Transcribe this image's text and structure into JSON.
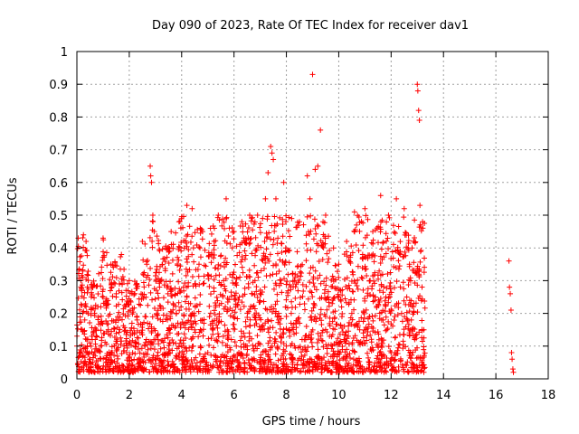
{
  "chart_data": {
    "type": "scatter",
    "title": "Day 090 of 2023, Rate Of TEC Index for receiver dav1",
    "xlabel": "GPS time / hours",
    "ylabel": "ROTI / TECUs",
    "xlim": [
      0,
      18
    ],
    "ylim": [
      0,
      1
    ],
    "x_ticks": [
      "0",
      "2",
      "4",
      "6",
      "8",
      "10",
      "12",
      "14",
      "16",
      "18"
    ],
    "y_ticks": [
      "0",
      "0.1",
      "0.2",
      "0.3",
      "0.4",
      "0.5",
      "0.6",
      "0.7",
      "0.8",
      "0.9",
      "1"
    ],
    "grid": true,
    "marker": "plus",
    "color": "#ff0000",
    "envelope_note_x_hours": [
      [
        0.0,
        0.43
      ],
      [
        0.3,
        0.45
      ],
      [
        0.5,
        0.3
      ],
      [
        0.8,
        0.3
      ],
      [
        1.0,
        0.43
      ],
      [
        1.3,
        0.35
      ],
      [
        1.7,
        0.38
      ],
      [
        2.0,
        0.3
      ],
      [
        2.3,
        0.3
      ],
      [
        2.6,
        0.42
      ],
      [
        2.8,
        0.65
      ],
      [
        3.0,
        0.45
      ],
      [
        3.3,
        0.4
      ],
      [
        3.6,
        0.45
      ],
      [
        3.9,
        0.48
      ],
      [
        4.2,
        0.53
      ],
      [
        4.5,
        0.5
      ],
      [
        4.8,
        0.45
      ],
      [
        5.1,
        0.46
      ],
      [
        5.4,
        0.5
      ],
      [
        5.7,
        0.55
      ],
      [
        6.0,
        0.45
      ],
      [
        6.3,
        0.48
      ],
      [
        6.6,
        0.5
      ],
      [
        6.9,
        0.5
      ],
      [
        7.2,
        0.55
      ],
      [
        7.4,
        0.71
      ],
      [
        7.6,
        0.55
      ],
      [
        7.9,
        0.6
      ],
      [
        8.2,
        0.49
      ],
      [
        8.5,
        0.48
      ],
      [
        8.8,
        0.62
      ],
      [
        9.0,
        0.93
      ],
      [
        9.2,
        0.65
      ],
      [
        9.3,
        0.76
      ],
      [
        9.5,
        0.5
      ],
      [
        9.8,
        0.4
      ],
      [
        10.0,
        0.35
      ],
      [
        10.3,
        0.42
      ],
      [
        10.6,
        0.51
      ],
      [
        11.0,
        0.52
      ],
      [
        11.3,
        0.45
      ],
      [
        11.6,
        0.56
      ],
      [
        11.9,
        0.5
      ],
      [
        12.2,
        0.55
      ],
      [
        12.5,
        0.52
      ],
      [
        12.8,
        0.4
      ],
      [
        13.0,
        0.9
      ],
      [
        13.2,
        0.48
      ],
      [
        16.5,
        0.36
      ]
    ],
    "series": [
      {
        "values": [
          [
            0.0,
            0.1
          ],
          [
            0.05,
            0.43
          ],
          [
            0.1,
            0.08
          ],
          [
            0.15,
            0.3
          ],
          [
            0.2,
            0.15
          ],
          [
            0.25,
            0.44
          ],
          [
            0.3,
            0.18
          ],
          [
            0.35,
            0.42
          ],
          [
            0.4,
            0.1
          ],
          [
            0.5,
            0.06
          ],
          [
            0.6,
            0.05
          ],
          [
            0.7,
            0.12
          ],
          [
            0.8,
            0.22
          ],
          [
            0.9,
            0.1
          ],
          [
            1.0,
            0.43
          ],
          [
            1.1,
            0.05
          ],
          [
            1.2,
            0.15
          ],
          [
            1.3,
            0.35
          ],
          [
            1.4,
            0.03
          ],
          [
            1.5,
            0.25
          ],
          [
            1.7,
            0.38
          ],
          [
            1.8,
            0.1
          ],
          [
            1.9,
            0.08
          ],
          [
            2.0,
            0.3
          ],
          [
            2.1,
            0.04
          ],
          [
            2.3,
            0.18
          ],
          [
            2.5,
            0.42
          ],
          [
            2.6,
            0.1
          ],
          [
            2.8,
            0.65
          ],
          [
            2.82,
            0.62
          ],
          [
            2.85,
            0.6
          ],
          [
            2.9,
            0.5
          ],
          [
            2.95,
            0.45
          ],
          [
            3.0,
            0.12
          ],
          [
            3.2,
            0.3
          ],
          [
            3.4,
            0.4
          ],
          [
            3.5,
            0.08
          ],
          [
            3.6,
            0.45
          ],
          [
            3.8,
            0.2
          ],
          [
            3.9,
            0.48
          ],
          [
            4.0,
            0.1
          ],
          [
            4.2,
            0.53
          ],
          [
            4.4,
            0.52
          ],
          [
            4.5,
            0.15
          ],
          [
            4.7,
            0.4
          ],
          [
            4.8,
            0.45
          ],
          [
            5.0,
            0.08
          ],
          [
            5.1,
            0.46
          ],
          [
            5.3,
            0.22
          ],
          [
            5.4,
            0.5
          ],
          [
            5.6,
            0.3
          ],
          [
            5.7,
            0.55
          ],
          [
            5.9,
            0.12
          ],
          [
            6.0,
            0.45
          ],
          [
            6.2,
            0.25
          ],
          [
            6.3,
            0.48
          ],
          [
            6.5,
            0.1
          ],
          [
            6.6,
            0.5
          ],
          [
            6.8,
            0.3
          ],
          [
            6.9,
            0.5
          ],
          [
            7.0,
            0.15
          ],
          [
            7.2,
            0.55
          ],
          [
            7.3,
            0.63
          ],
          [
            7.4,
            0.71
          ],
          [
            7.45,
            0.69
          ],
          [
            7.5,
            0.67
          ],
          [
            7.6,
            0.55
          ],
          [
            7.7,
            0.2
          ],
          [
            7.9,
            0.6
          ],
          [
            8.0,
            0.1
          ],
          [
            8.2,
            0.49
          ],
          [
            8.3,
            0.3
          ],
          [
            8.5,
            0.48
          ],
          [
            8.6,
            0.12
          ],
          [
            8.8,
            0.62
          ],
          [
            8.9,
            0.55
          ],
          [
            9.0,
            0.93
          ],
          [
            9.1,
            0.64
          ],
          [
            9.2,
            0.65
          ],
          [
            9.3,
            0.76
          ],
          [
            9.4,
            0.48
          ],
          [
            9.5,
            0.5
          ],
          [
            9.6,
            0.25
          ],
          [
            9.8,
            0.4
          ],
          [
            9.9,
            0.05
          ],
          [
            10.0,
            0.35
          ],
          [
            10.1,
            0.03
          ],
          [
            10.2,
            0.12
          ],
          [
            10.3,
            0.42
          ],
          [
            10.5,
            0.2
          ],
          [
            10.6,
            0.51
          ],
          [
            10.8,
            0.15
          ],
          [
            11.0,
            0.52
          ],
          [
            11.2,
            0.3
          ],
          [
            11.3,
            0.45
          ],
          [
            11.5,
            0.1
          ],
          [
            11.6,
            0.56
          ],
          [
            11.8,
            0.25
          ],
          [
            11.9,
            0.5
          ],
          [
            12.0,
            0.08
          ],
          [
            12.2,
            0.55
          ],
          [
            12.4,
            0.2
          ],
          [
            12.5,
            0.52
          ],
          [
            12.7,
            0.35
          ],
          [
            12.8,
            0.4
          ],
          [
            12.9,
            0.12
          ],
          [
            13.0,
            0.9
          ],
          [
            13.02,
            0.88
          ],
          [
            13.05,
            0.82
          ],
          [
            13.08,
            0.79
          ],
          [
            13.1,
            0.53
          ],
          [
            13.2,
            0.48
          ],
          [
            13.25,
            0.15
          ],
          [
            16.5,
            0.36
          ],
          [
            16.52,
            0.28
          ],
          [
            16.55,
            0.26
          ],
          [
            16.58,
            0.21
          ],
          [
            16.6,
            0.08
          ],
          [
            16.62,
            0.06
          ],
          [
            16.65,
            0.03
          ],
          [
            16.67,
            0.02
          ]
        ]
      }
    ]
  }
}
